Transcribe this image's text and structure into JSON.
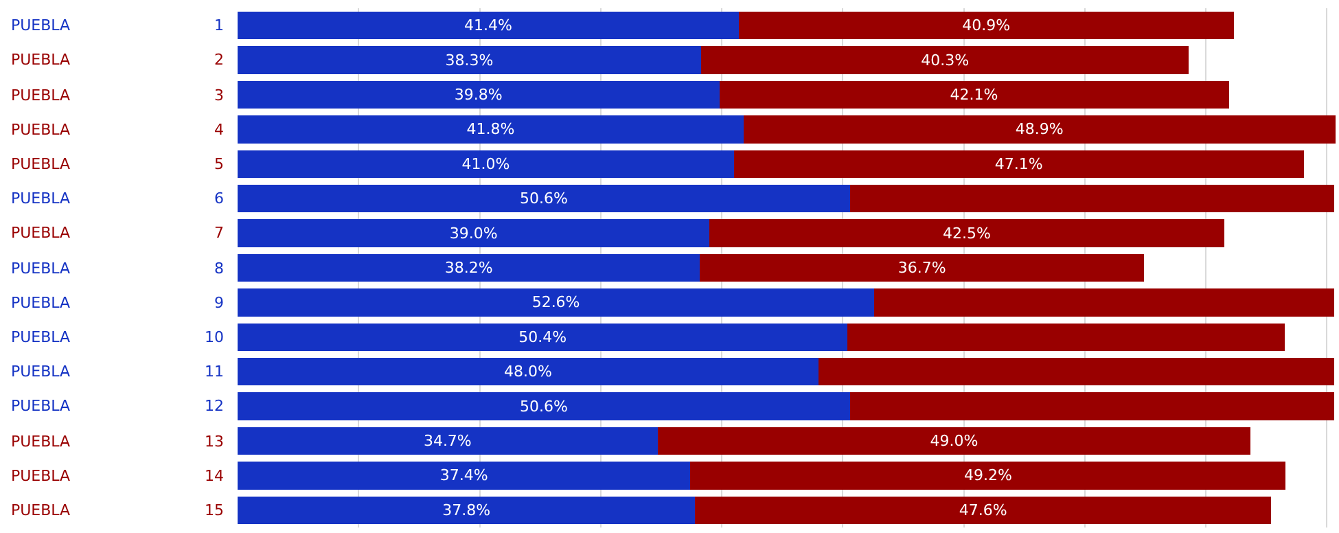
{
  "chart_data": {
    "type": "bar",
    "orientation": "horizontal",
    "stacked": true,
    "categories": [
      "PUEBLA",
      "PUEBLA",
      "PUEBLA",
      "PUEBLA",
      "PUEBLA",
      "PUEBLA",
      "PUEBLA",
      "PUEBLA",
      "PUEBLA",
      "PUEBLA",
      "PUEBLA",
      "PUEBLA",
      "PUEBLA",
      "PUEBLA",
      "PUEBLA"
    ],
    "y2_categories": [
      "1",
      "2",
      "3",
      "4",
      "5",
      "6",
      "7",
      "8",
      "9",
      "10",
      "11",
      "12",
      "13",
      "14",
      "15"
    ],
    "series": [
      {
        "color": "#1533c4",
        "values": [
          41.4,
          38.3,
          39.8,
          41.8,
          41.0,
          50.6,
          39.0,
          38.2,
          52.6,
          50.4,
          48.0,
          50.6,
          34.7,
          37.4,
          37.8
        ],
        "value_labels": [
          "41.4%",
          "38.3%",
          "39.8%",
          "41.8%",
          "41.0%",
          "50.6%",
          "39.0%",
          "38.2%",
          "52.6%",
          "50.4%",
          "48.0%",
          "50.6%",
          "34.7%",
          "37.4%",
          "37.8%"
        ]
      },
      {
        "color": "#990000",
        "values": [
          40.9,
          40.3,
          42.1,
          48.9,
          47.1,
          40,
          42.5,
          36.7,
          38,
          36.1,
          42.6,
          40,
          49.0,
          49.2,
          47.6
        ],
        "value_labels": [
          "40.9%",
          "40.3%",
          "42.1%",
          "48.9%",
          "47.1%",
          null,
          "42.5%",
          "36.7%",
          null,
          null,
          null,
          null,
          "49.0%",
          "49.2%",
          "47.6%"
        ]
      }
    ],
    "xlim": [
      0,
      91
    ],
    "grid": "x",
    "tick_labels": "y",
    "legend": false
  }
}
